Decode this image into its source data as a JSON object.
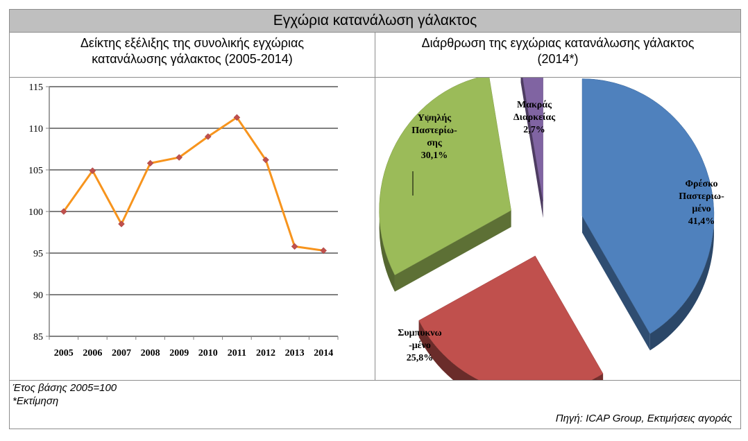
{
  "title": "Εγχώρια κατανάλωση γάλακτος",
  "left_header": [
    "Δείκτης εξέλιξης της συνολικής εγχώριας",
    "κατανάλωσης γάλακτος (2005-2014)"
  ],
  "right_header": [
    "Διάρθρωση της εγχώριας κατανάλωσης γάλακτος",
    "(2014*)"
  ],
  "notes": [
    "Έτος βάσης 2005=100",
    "*Εκτίμηση"
  ],
  "source": "Πηγή: ICAP Group, Εκτιμήσεις αγοράς",
  "chart_data": [
    {
      "type": "line",
      "categories": [
        "2005",
        "2006",
        "2007",
        "2008",
        "2009",
        "2010",
        "2011",
        "2012",
        "2013",
        "2014"
      ],
      "values": [
        100,
        104.9,
        98.5,
        105.8,
        106.5,
        109.0,
        111.3,
        106.2,
        95.8,
        95.3
      ],
      "ylim": [
        85,
        115
      ],
      "yticks": [
        "85",
        "90",
        "95",
        "100",
        "105",
        "110",
        "115"
      ],
      "grid": true,
      "line_color": "#f7941d",
      "marker_color": "#c0504d"
    },
    {
      "type": "pie",
      "style": "3d-exploded",
      "slices": [
        {
          "label_lines": [
            "Φρέσκο",
            "Παστεριω-",
            "μένο"
          ],
          "value_label": "41,4%",
          "value": 41.4,
          "color": "#4f81bd"
        },
        {
          "label_lines": [
            "Συμπυκνω",
            "-μένο"
          ],
          "value_label": "25,8%",
          "value": 25.8,
          "color": "#c0504d"
        },
        {
          "label_lines": [
            "Υψηλής",
            "Παστερίω-",
            "σης"
          ],
          "value_label": "30,1%",
          "value": 30.1,
          "color": "#9bbb59"
        },
        {
          "label_lines": [
            "Μακράς",
            "Διαρκείας"
          ],
          "value_label": "2,7%",
          "value": 2.7,
          "color": "#8064a2"
        }
      ]
    }
  ]
}
